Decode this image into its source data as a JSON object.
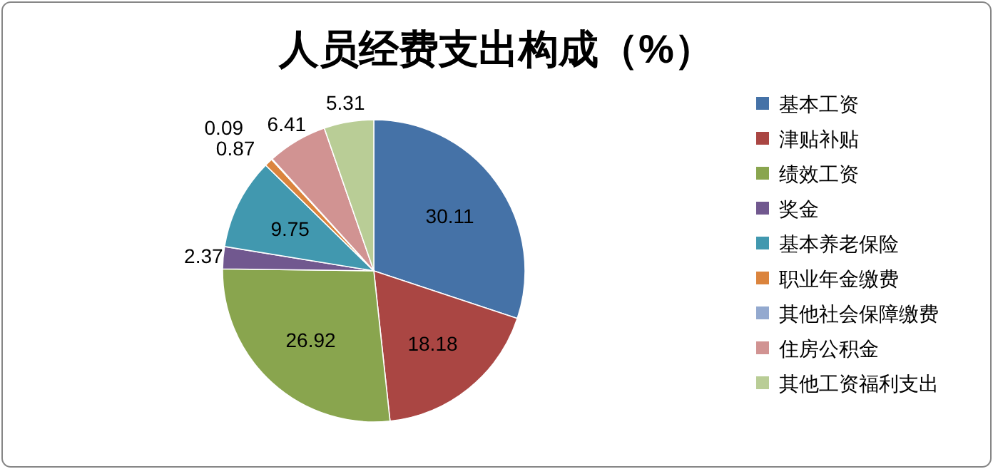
{
  "chart_data": {
    "type": "pie",
    "title": "人员经费支出构成（%）",
    "categories": [
      "基本工资",
      "津贴补贴",
      "绩效工资",
      "奖金",
      "基本养老保险",
      "职业年金缴费",
      "其他社会保障缴费",
      "住房公积金",
      "其他工资福利支出"
    ],
    "values": [
      30.11,
      18.18,
      26.92,
      2.37,
      9.75,
      0.87,
      0.09,
      6.41,
      5.31
    ],
    "colors": [
      "#4572a7",
      "#aa4643",
      "#89a54e",
      "#71588f",
      "#4198af",
      "#db843d",
      "#93a9cf",
      "#d19392",
      "#b9cd96"
    ],
    "data_labels": true,
    "legend": "right"
  }
}
